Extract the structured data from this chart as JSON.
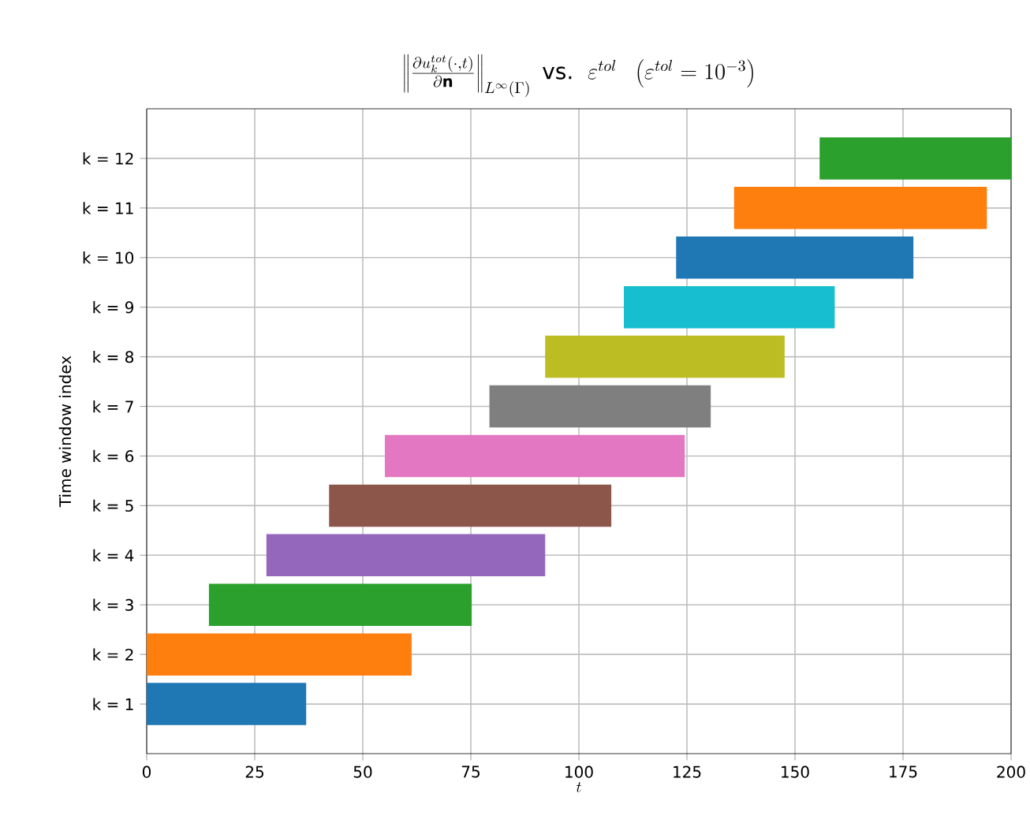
{
  "chart_data": {
    "type": "bar",
    "orientation": "horizontal",
    "title": "\\left\\|\\frac{\\partial u_k^{tot}(\\cdot,t)}{\\partial \\mathbf{n}}\\right\\|_{L^\\infty(\\Gamma)}\\ \\mbox{vs.}\\ \\ \\varepsilon^{tol}\\ \\ \\left(\\varepsilon^{tol}=10^{-3}\\right)",
    "xlabel": "t",
    "ylabel": "Time window index",
    "categories": [
      "k = 12",
      "k = 11",
      "k = 10",
      "k = 9",
      "k = 8",
      "k = 7",
      "k = 6",
      "k = 5",
      "k = 4",
      "k = 3",
      "k = 2",
      "k = 1"
    ],
    "base": [
      155.7,
      135.9,
      122.5,
      110.4,
      92.2,
      79.3,
      55.1,
      42.2,
      27.7,
      14.4,
      0,
      0
    ],
    "values": [
      44.3,
      58.5,
      54.9,
      48.8,
      55.4,
      51.2,
      69.4,
      65.3,
      64.5,
      60.8,
      61.3,
      36.9
    ],
    "colors": [
      "#2ca02c",
      "#ff7f0e",
      "#1f77b4",
      "#17becf",
      "#bcbd22",
      "#7f7f7f",
      "#e377c2",
      "#8c564b",
      "#9467bd",
      "#2ca02c",
      "#ff7f0e",
      "#1f77b4"
    ],
    "xlim": [
      0,
      200
    ],
    "xticks": [
      0,
      25,
      50,
      75,
      100,
      125,
      150,
      175,
      200
    ],
    "grid": true
  }
}
